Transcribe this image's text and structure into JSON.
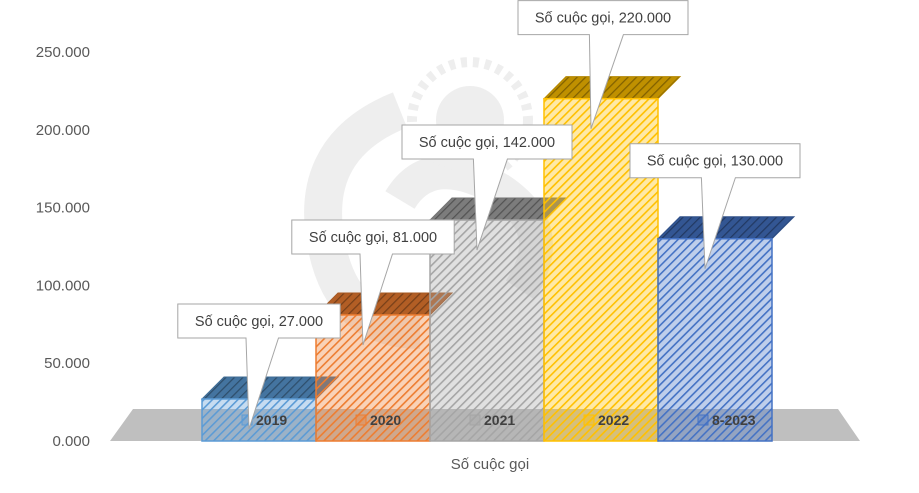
{
  "chart_data": {
    "type": "bar",
    "title": "",
    "xlabel": "Số cuộc gọi",
    "ylabel": "",
    "ylim": [
      0,
      250000
    ],
    "yticks": [
      0,
      50000,
      100000,
      150000,
      200000,
      250000
    ],
    "ytick_labels": [
      "0.000",
      "50.000",
      "100.000",
      "150.000",
      "200.000",
      "250.000"
    ],
    "categories": [
      "2019",
      "2020",
      "2021",
      "2022",
      "8-2023"
    ],
    "values": [
      27000,
      81000,
      142000,
      220000,
      130000
    ],
    "data_labels": [
      "Số cuộc gọi, 27.000",
      "Số cuộc gọi, 81.000",
      "Số cuộc gọi, 142.000",
      "Số cuộc gọi, 220.000",
      "Số cuộc gọi, 130.000"
    ],
    "colors": [
      "#5b9bd5",
      "#ed7d31",
      "#a5a5a5",
      "#ffc000",
      "#4472c4"
    ],
    "legend_position": "inside-bars-bottom",
    "grid": false,
    "style": "3d-hatched-bars"
  }
}
